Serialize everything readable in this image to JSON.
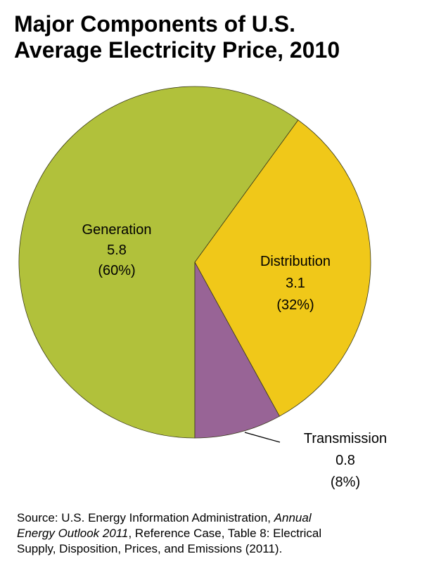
{
  "title": {
    "line1": "Major Components of U.S.",
    "line2": "Average Electricity Price, 2010"
  },
  "chart_data": {
    "type": "pie",
    "title": "Major Components of U.S. Average Electricity Price, 2010",
    "slices": [
      {
        "label": "Generation",
        "value": 5.8,
        "value_text": "5.8",
        "percent_text": "(60%)",
        "color": "#b1c13b"
      },
      {
        "label": "Distribution",
        "value": 3.1,
        "value_text": "3.1",
        "percent_text": "(32%)",
        "color": "#f0c819"
      },
      {
        "label": "Transmission",
        "value": 0.8,
        "value_text": "0.8",
        "percent_text": "(8%)",
        "color": "#986496"
      }
    ],
    "percents": [
      60,
      32,
      8
    ]
  },
  "source": {
    "line1_prefix": "Source: U.S. Energy Information Administration, ",
    "line1_italic": "Annual",
    "line2_italic": "Energy Outlook 2011",
    "line2_suffix": ", Reference Case, Table 8: Electrical",
    "line3": "Supply, Disposition, Prices, and Emissions (2011)."
  }
}
